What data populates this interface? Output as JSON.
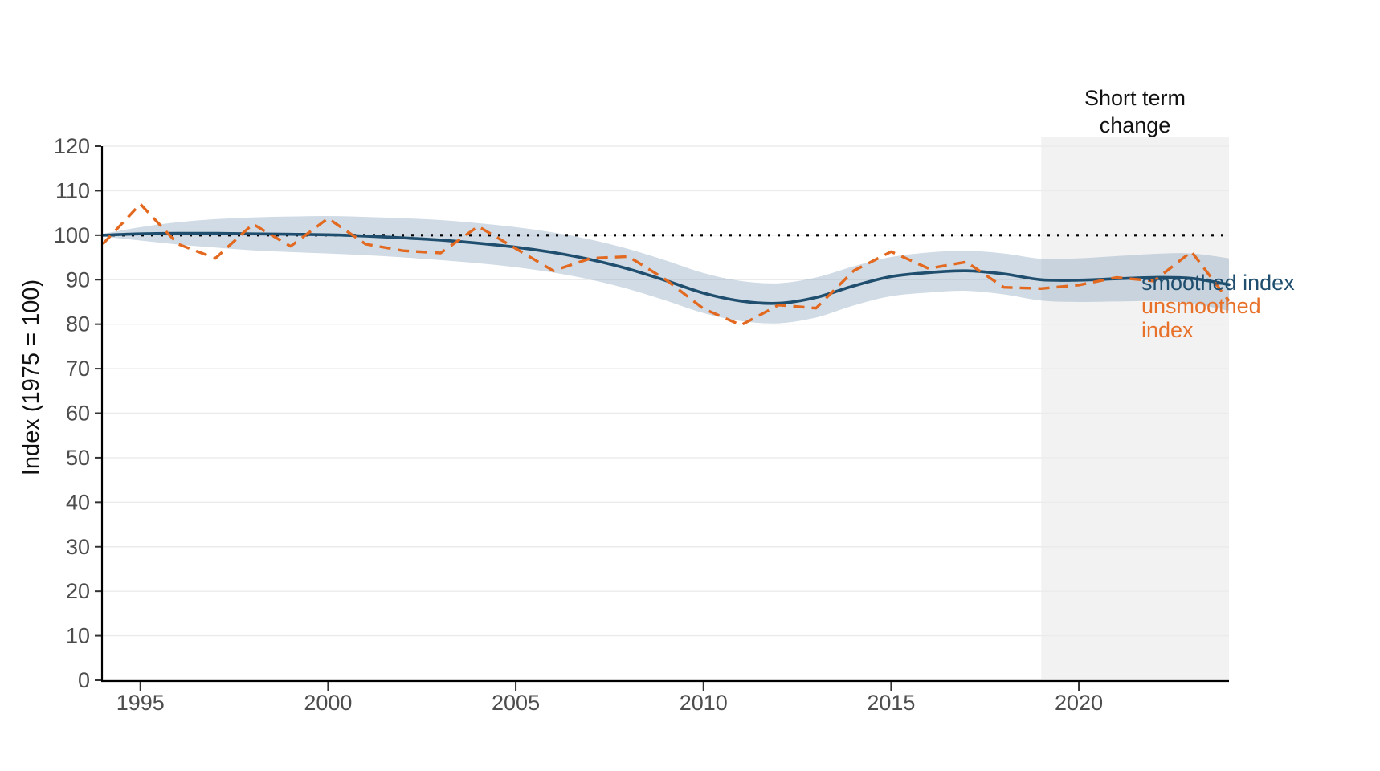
{
  "figure": {
    "y_axis_title": "Index (1975 = 100)",
    "region_label_line1": "Short term",
    "region_label_line2": "change",
    "legend": {
      "smoothed_label": "smoothed index",
      "unsmoothed_label_line1": "unsmoothed",
      "unsmoothed_label_line2": "index"
    },
    "colors": {
      "smoothed": "#1f4e6e",
      "unsmoothed": "#e2691f",
      "band": "#8fa9c0",
      "region": "#f2f2f2",
      "grid": "#ebebeb",
      "axis": "#000000",
      "tick_label": "#4d4d4d",
      "reference": "#000000"
    }
  },
  "chart_data": {
    "type": "line",
    "title": "",
    "ylabel": "Index (1975 = 100)",
    "xlabel": "",
    "ylim": [
      0,
      120
    ],
    "xlim": [
      1994,
      2024
    ],
    "yticks": [
      0,
      10,
      20,
      30,
      40,
      50,
      60,
      70,
      80,
      90,
      100,
      110,
      120
    ],
    "xticks": [
      1995,
      2000,
      2005,
      2010,
      2015,
      2020
    ],
    "grid": "horizontal-only",
    "legend_position": "right-of-plot",
    "reference_line": {
      "value": 100,
      "style": "dotted",
      "color": "#000000"
    },
    "shaded_region": {
      "label": "Short term change",
      "x_start": 2019,
      "x_end": 2024,
      "color": "#f2f2f2"
    },
    "x": [
      1994,
      1995,
      1996,
      1997,
      1998,
      1999,
      2000,
      2001,
      2002,
      2003,
      2004,
      2005,
      2006,
      2007,
      2008,
      2009,
      2010,
      2011,
      2012,
      2013,
      2014,
      2015,
      2016,
      2017,
      2018,
      2019,
      2020,
      2021,
      2022,
      2023,
      2024
    ],
    "series": [
      {
        "name": "smoothed index",
        "style": "solid",
        "color": "#1f4e6e",
        "values": [
          100.0,
          100.3,
          100.4,
          100.4,
          100.3,
          100.2,
          100.1,
          99.8,
          99.4,
          98.9,
          98.2,
          97.3,
          96.1,
          94.5,
          92.4,
          89.8,
          87.0,
          85.2,
          84.7,
          86.0,
          88.6,
          90.7,
          91.6,
          92.0,
          91.3,
          90.0,
          89.9,
          90.2,
          90.5,
          90.3,
          88.9
        ]
      },
      {
        "name": "unsmoothed index",
        "style": "dashed",
        "color": "#e2691f",
        "values": [
          98.0,
          107.0,
          98.0,
          94.8,
          102.5,
          97.5,
          103.8,
          98.0,
          96.5,
          96.0,
          102.0,
          97.0,
          92.0,
          94.8,
          95.2,
          90.0,
          83.5,
          79.8,
          84.3,
          83.6,
          92.0,
          96.3,
          92.5,
          94.0,
          88.3,
          88.0,
          88.8,
          90.5,
          89.7,
          96.3,
          85.2
        ]
      }
    ],
    "confidence_band": {
      "series": "smoothed index",
      "lower": [
        99.7,
        98.8,
        97.9,
        97.2,
        96.6,
        96.2,
        95.9,
        95.5,
        95.0,
        94.4,
        93.7,
        92.8,
        91.6,
        90.0,
        87.9,
        85.3,
        82.5,
        80.7,
        80.2,
        81.5,
        84.2,
        86.3,
        87.1,
        87.5,
        86.7,
        85.3,
        85.0,
        85.1,
        85.2,
        84.7,
        83.0
      ],
      "upper": [
        100.3,
        101.8,
        102.9,
        103.6,
        104.0,
        104.2,
        104.3,
        104.1,
        103.8,
        103.4,
        102.7,
        101.8,
        100.6,
        99.0,
        96.9,
        94.3,
        91.5,
        89.7,
        89.2,
        90.5,
        93.0,
        95.1,
        96.1,
        96.5,
        95.9,
        94.7,
        94.8,
        95.3,
        95.8,
        95.9,
        94.8
      ]
    }
  }
}
